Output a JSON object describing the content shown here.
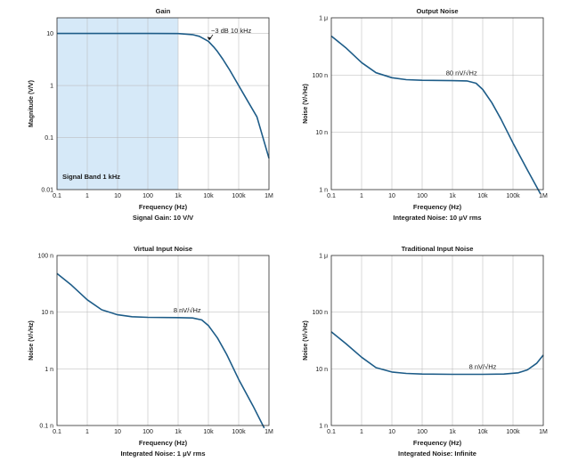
{
  "colors": {
    "curve": "#1d5c88",
    "band": "#d6e9f8",
    "grid": "#b5b5b5",
    "frame": "#2a2a2a"
  },
  "chart_data": [
    {
      "id": "gain",
      "type": "line",
      "title": "Gain",
      "xlabel": "Frequency (Hz)",
      "ylabel": "Magnitude (V/V)",
      "caption": "Signal Gain: 10 V/V",
      "xscale": "log",
      "yscale": "log",
      "xlim": [
        0.1,
        1000000
      ],
      "ylim": [
        0.01,
        20
      ],
      "xticks": [
        0.1,
        1,
        10,
        100,
        1000,
        10000,
        100000,
        1000000
      ],
      "xticklabels": [
        "0.1",
        "1",
        "10",
        "100",
        "1k",
        "10k",
        "100k",
        "1M"
      ],
      "yticks": [
        0.01,
        0.1,
        1,
        10
      ],
      "yticklabels": [
        "0.01",
        "0.1",
        "1",
        "10"
      ],
      "series": [
        {
          "name": "Gain",
          "x": [
            0.1,
            1,
            10,
            100,
            1000,
            3000,
            5000,
            8000,
            10000,
            15000,
            20000,
            30000,
            50000,
            100000,
            200000,
            400000,
            1000000
          ],
          "y": [
            10,
            10,
            10,
            10,
            9.95,
            9.5,
            8.8,
            7.6,
            7.07,
            5.5,
            4.5,
            3.2,
            2.0,
            1.0,
            0.5,
            0.25,
            0.04
          ]
        }
      ],
      "band": {
        "x": [
          0.1,
          1000
        ],
        "label": "Signal Band 1 kHz"
      },
      "annotation": {
        "text": "−3 dB 10 kHz",
        "x": 10000,
        "y": 7.07
      }
    },
    {
      "id": "output-noise",
      "type": "line",
      "title": "Output Noise",
      "xlabel": "Frequency (Hz)",
      "ylabel": "Noise (V/√Hz)",
      "caption": "Integrated Noise: 10 μV rms",
      "xscale": "log",
      "yscale": "log",
      "xlim": [
        0.1,
        1000000
      ],
      "ylim": [
        1e-09,
        1e-06
      ],
      "xticks": [
        0.1,
        1,
        10,
        100,
        1000,
        10000,
        100000,
        1000000
      ],
      "xticklabels": [
        "0.1",
        "1",
        "10",
        "100",
        "1k",
        "10k",
        "100k",
        "1M"
      ],
      "yticks": [
        1e-09,
        1e-08,
        1e-07,
        1e-06
      ],
      "yticklabels": [
        "1 n",
        "10 n",
        "100 n",
        "1 μ"
      ],
      "series": [
        {
          "name": "Output noise density",
          "x": [
            0.1,
            0.3,
            1,
            3,
            10,
            30,
            100,
            1000,
            3000,
            6000,
            10000,
            20000,
            40000,
            100000,
            300000,
            800000
          ],
          "y": [
            4.8e-07,
            3e-07,
            1.65e-07,
            1.1e-07,
            9e-08,
            8.3e-08,
            8.1e-08,
            8e-08,
            7.9e-08,
            7.2e-08,
            5.6e-08,
            3.3e-08,
            1.7e-08,
            6.5e-09,
            2.2e-09,
            8.5e-10
          ]
        }
      ],
      "annotation": {
        "text": "80 nV/√Hz",
        "x": 2000,
        "y": 8e-08
      }
    },
    {
      "id": "virtual-input-noise",
      "type": "line",
      "title": "Virtual Input Noise",
      "xlabel": "Frequency (Hz)",
      "ylabel": "Noise (V/√Hz)",
      "caption": "Integrated Noise: 1 μV rms",
      "xscale": "log",
      "yscale": "log",
      "xlim": [
        0.1,
        1000000
      ],
      "ylim": [
        1e-10,
        1e-07
      ],
      "xticks": [
        0.1,
        1,
        10,
        100,
        1000,
        10000,
        100000,
        1000000
      ],
      "xticklabels": [
        "0.1",
        "1",
        "10",
        "100",
        "1k",
        "10k",
        "100k",
        "1M"
      ],
      "yticks": [
        1e-10,
        1e-09,
        1e-08,
        1e-07
      ],
      "yticklabels": [
        "0.1 n",
        "1 n",
        "10 n",
        "100 n"
      ],
      "series": [
        {
          "name": "Virtual input noise density",
          "x": [
            0.1,
            0.3,
            1,
            3,
            10,
            30,
            100,
            1000,
            3000,
            6000,
            10000,
            20000,
            40000,
            100000,
            300000,
            700000
          ],
          "y": [
            4.8e-08,
            3e-08,
            1.65e-08,
            1.1e-08,
            9e-09,
            8.3e-09,
            8.1e-09,
            8e-09,
            7.9e-09,
            7.3e-09,
            5.8e-09,
            3.5e-09,
            1.8e-09,
            6.5e-10,
            2.2e-10,
            9e-11
          ]
        }
      ],
      "annotation": {
        "text": "8 nV/√Hz",
        "x": 2000,
        "y": 8e-09
      }
    },
    {
      "id": "traditional-input-noise",
      "type": "line",
      "title": "Traditional Input Noise",
      "xlabel": "Frequency (Hz)",
      "ylabel": "Noise (V/√Hz)",
      "caption": "Integrated Noise: Infinite",
      "xscale": "log",
      "yscale": "log",
      "xlim": [
        0.1,
        1000000
      ],
      "ylim": [
        1e-09,
        1e-06
      ],
      "xticks": [
        0.1,
        1,
        10,
        100,
        1000,
        10000,
        100000,
        1000000
      ],
      "xticklabels": [
        "0.1",
        "1",
        "10",
        "100",
        "1k",
        "10k",
        "100k",
        "1M"
      ],
      "yticks": [
        1e-09,
        1e-08,
        1e-07,
        1e-06
      ],
      "yticklabels": [
        "1 n",
        "10 n",
        "100 n",
        "1 μ"
      ],
      "series": [
        {
          "name": "Traditional input noise density",
          "x": [
            0.1,
            0.3,
            1,
            3,
            10,
            30,
            100,
            1000,
            10000,
            50000,
            150000,
            300000,
            600000,
            1000000
          ],
          "y": [
            4.5e-08,
            2.8e-08,
            1.6e-08,
            1.05e-08,
            8.8e-09,
            8.3e-09,
            8.1e-09,
            8e-09,
            8e-09,
            8.1e-09,
            8.5e-09,
            9.6e-09,
            1.25e-08,
            1.75e-08
          ]
        }
      ],
      "annotation": {
        "text": "8 nV/√Hz",
        "x": 10000,
        "y": 8e-09
      }
    }
  ]
}
